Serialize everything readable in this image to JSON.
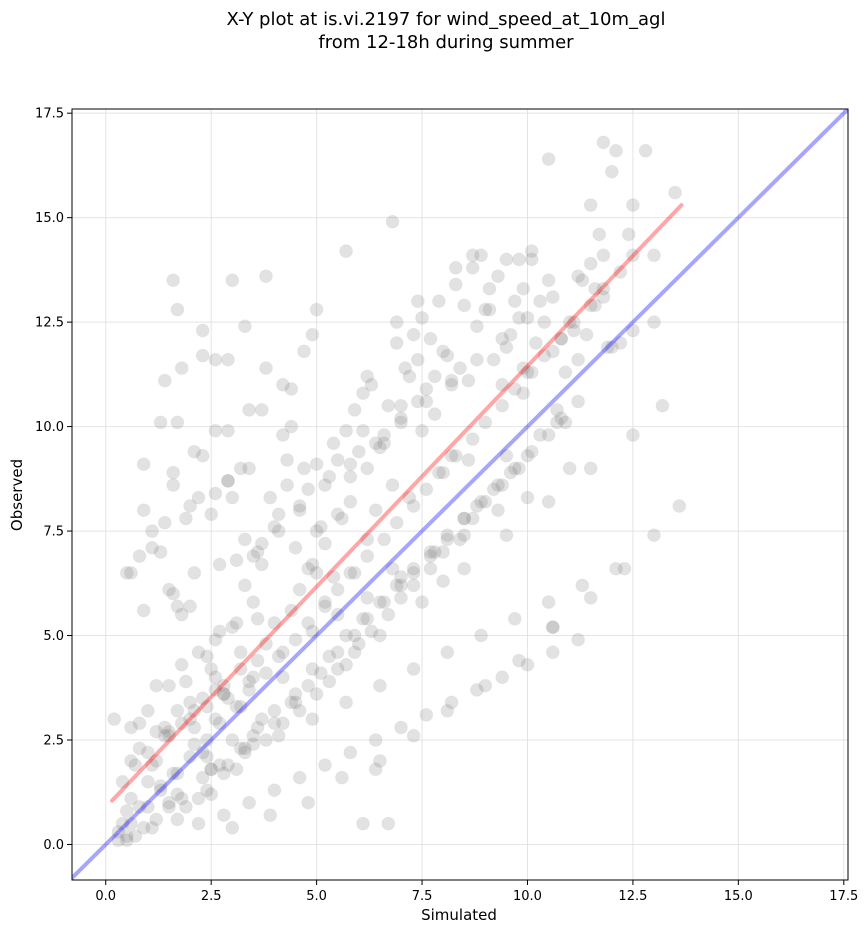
{
  "chart_data": {
    "type": "scatter",
    "title_lines": [
      "X-Y plot at is.vi.2197 for wind_speed_at_10m_agl",
      "from 12-18h during summer"
    ],
    "xlabel": "Simulated",
    "ylabel": "Observed",
    "xlim": [
      -0.8,
      17.6
    ],
    "ylim": [
      -0.85,
      17.6
    ],
    "xticks": [
      0.0,
      2.5,
      5.0,
      7.5,
      10.0,
      12.5,
      15.0,
      17.5
    ],
    "yticks": [
      0.0,
      2.5,
      5.0,
      7.5,
      10.0,
      12.5,
      15.0,
      17.5
    ],
    "xtick_labels": [
      "0.0",
      "2.5",
      "5.0",
      "7.5",
      "10.0",
      "12.5",
      "15.0",
      "17.5"
    ],
    "ytick_labels": [
      "0.0",
      "2.5",
      "5.0",
      "7.5",
      "10.0",
      "12.5",
      "15.0",
      "17.5"
    ],
    "grid": true,
    "point_color": "#7a7a7a",
    "reference_lines": [
      {
        "kind": "identity",
        "color": "#0000ff",
        "x": [
          -0.8,
          17.6
        ],
        "y": [
          -0.8,
          17.6
        ]
      },
      {
        "kind": "fit",
        "color": "#ff0000",
        "x": [
          0.15,
          13.65
        ],
        "y": [
          1.05,
          15.3
        ]
      }
    ],
    "series": [
      {
        "x": [
          1.7,
          0.5,
          1.0,
          2.1,
          1.6,
          0.4,
          1.1,
          1.8,
          2.4,
          0.8,
          1.3,
          2.0,
          1.5,
          0.6,
          2.6,
          3.0,
          1.9,
          2.3,
          2.8,
          1.2,
          3.2,
          2.5,
          0.3,
          1.4,
          2.2,
          3.4,
          2.7,
          1.0,
          3.6,
          2.0,
          3.8,
          4.0,
          2.9,
          3.3,
          4.2,
          1.6,
          3.1,
          4.4,
          2.4,
          3.7,
          4.6,
          3.0,
          4.8,
          2.6,
          5.0,
          3.5,
          4.1,
          5.2,
          3.9,
          4.5,
          5.4,
          4.3,
          2.1,
          5.6,
          4.7,
          3.2,
          5.8,
          4.9,
          6.0,
          5.1,
          3.6,
          5.3,
          6.2,
          4.4,
          5.5,
          6.4,
          5.7,
          4.8,
          6.6,
          5.9,
          6.8,
          6.1,
          5.0,
          7.0,
          6.3,
          5.4,
          7.2,
          6.5,
          7.4,
          6.7,
          5.8,
          7.6,
          6.9,
          7.8,
          7.1,
          6.2,
          8.0,
          7.3,
          8.2,
          7.5,
          6.6,
          8.4,
          7.7,
          8.6,
          7.9,
          7.0,
          8.8,
          8.1,
          9.0,
          8.3,
          7.4,
          9.2,
          8.5,
          9.4,
          8.7,
          9.6,
          8.9,
          7.8,
          9.8,
          9.1,
          10.0,
          9.3,
          10.2,
          9.5,
          8.2,
          10.4,
          9.7,
          10.6,
          9.9,
          10.8,
          10.1,
          11.0,
          10.3,
          11.2,
          10.5,
          11.4,
          10.7,
          11.6,
          10.9,
          11.8,
          11.1,
          12.0,
          11.3,
          12.2,
          11.5,
          12.5,
          11.7,
          12.8,
          13.0,
          13.5,
          0.7,
          1.2,
          1.9,
          2.4,
          0.9,
          1.5,
          2.2,
          2.8,
          3.1,
          1.7,
          0.5,
          2.5,
          3.3,
          1.1,
          3.8,
          2.9,
          4.2,
          1.8,
          3.5,
          4.6,
          2.3,
          4.0,
          5.0,
          2.7,
          4.4,
          5.3,
          3.2,
          4.8,
          5.7,
          3.6,
          5.1,
          6.0,
          4.0,
          5.5,
          6.3,
          4.5,
          5.9,
          6.7,
          4.9,
          6.2,
          7.0,
          5.3,
          6.6,
          7.3,
          5.7,
          7.0,
          7.7,
          6.1,
          7.3,
          8.0,
          6.5,
          7.7,
          8.4,
          6.9,
          8.1,
          8.7,
          7.3,
          8.5,
          9.0,
          7.7,
          8.8,
          9.4,
          8.1,
          9.2,
          9.8,
          8.5,
          9.6,
          10.1,
          8.9,
          10.0,
          10.5,
          9.3,
          10.3,
          10.8,
          9.7,
          10.7,
          11.2,
          1.6,
          2.3,
          3.0,
          3.3,
          1.8,
          0.9,
          2.9,
          2.1,
          3.2,
          3.8,
          1.7,
          2.3,
          3.4,
          4.4,
          2.9,
          3.7,
          4.2,
          4.7,
          5.0,
          4.9,
          5.7,
          2.6,
          3.8,
          1.3,
          6.2,
          6.8,
          0.9,
          1.1,
          8.7,
          10.1,
          0.6,
          1.4,
          2.0,
          2.5,
          0.8,
          1.1,
          1.6,
          2.2,
          2.9,
          0.5,
          1.3,
          1.9,
          2.6,
          3.4,
          0.9,
          1.5,
          2.1,
          2.7,
          3.3,
          4.1,
          4.6,
          3.6,
          1.2,
          1.8,
          2.4,
          0.6,
          1.2,
          1.7,
          2.3,
          2.8,
          0.4,
          0.7,
          1.0,
          1.5,
          2.0,
          2.6,
          3.2,
          0.8,
          1.4,
          2.1,
          2.8,
          3.5,
          4.2,
          4.9,
          5.5,
          6.2,
          7.0,
          7.8,
          8.5,
          9.3,
          10.0,
          3.0,
          3.9,
          4.8,
          5.6,
          6.5,
          7.3,
          8.1,
          9.0,
          9.8,
          10.6,
          11.5,
          12.3,
          13.0,
          13.6,
          2.5,
          3.3,
          4.1,
          4.9,
          5.7,
          6.5,
          7.3,
          8.1,
          8.9,
          9.7,
          10.5,
          11.3,
          12.1,
          0.3,
          0.6,
          1.0,
          1.3,
          1.7,
          2.0,
          2.4,
          2.7,
          3.1,
          3.4,
          3.8,
          4.1,
          4.5,
          4.8,
          5.2,
          5.5,
          5.9,
          6.2,
          6.6,
          6.9,
          7.3,
          7.6,
          8.0,
          8.3,
          8.7,
          9.0,
          9.4,
          9.7,
          10.1,
          10.4,
          10.8,
          11.1,
          11.5,
          11.8,
          12.2,
          12.5,
          4.0,
          4.6,
          5.2,
          5.8,
          6.4,
          7.0,
          7.6,
          8.2,
          8.8,
          9.4,
          10.0,
          10.6,
          11.2,
          11.8,
          12.4,
          2.2,
          2.8,
          3.4,
          4.0,
          4.6,
          5.2,
          5.8,
          6.4,
          7.0,
          7.6,
          8.2,
          8.8,
          9.4,
          10.0,
          10.6,
          11.2,
          1.5,
          3.5,
          5.5,
          7.5,
          9.5,
          11.5,
          0.5,
          1.5,
          2.5,
          3.5,
          4.5,
          5.5,
          6.5,
          7.5,
          8.5,
          9.5,
          10.5,
          11.5,
          12.5,
          13.2,
          11.8,
          12.1,
          12.0,
          11.6,
          10.5,
          9.8,
          13.0,
          12.5,
          9.9,
          11.9,
          8.6,
          7.9,
          7.2,
          6.8,
          5.9,
          10.6,
          11.0,
          9.5,
          8.0,
          10.9,
          0.2,
          1.8,
          3.7,
          5.0,
          6.1,
          6.9,
          7.4,
          8.3,
          9.1,
          9.9,
          1.7,
          2.9,
          4.2,
          4.3,
          5.2,
          5.8,
          3.0,
          2.6,
          2.3,
          1.4,
          1.7,
          1.6,
          3.1,
          2.6,
          3.7,
          6.4,
          6.1,
          6.7,
          0.8,
          0.6
        ],
        "y": [
          1.2,
          0.8,
          1.5,
          2.4,
          1.7,
          0.5,
          1.9,
          2.9,
          2.1,
          0.9,
          1.4,
          3.4,
          2.7,
          1.1,
          3.0,
          2.5,
          3.9,
          2.2,
          3.6,
          2.0,
          3.3,
          4.2,
          0.3,
          2.6,
          4.6,
          3.9,
          5.1,
          3.2,
          4.4,
          5.7,
          4.8,
          5.3,
          3.5,
          6.2,
          4.0,
          6.0,
          6.8,
          5.6,
          3.3,
          7.2,
          6.1,
          5.2,
          6.6,
          4.9,
          7.5,
          6.9,
          7.9,
          5.8,
          8.3,
          7.1,
          6.4,
          8.6,
          2.8,
          7.8,
          9.0,
          4.6,
          8.2,
          6.7,
          9.4,
          7.6,
          5.4,
          8.8,
          7.3,
          10.0,
          9.2,
          8.0,
          9.9,
          8.5,
          9.6,
          10.4,
          8.6,
          10.8,
          9.1,
          10.2,
          11.0,
          9.6,
          11.2,
          9.5,
          11.6,
          10.5,
          8.8,
          10.9,
          12.0,
          10.3,
          11.4,
          9.0,
          11.8,
          12.2,
          11.0,
          12.6,
          9.8,
          11.4,
          12.1,
          11.1,
          13.0,
          10.5,
          12.4,
          11.7,
          12.8,
          13.4,
          10.6,
          11.6,
          12.9,
          11.0,
          13.8,
          12.2,
          14.1,
          11.2,
          12.6,
          13.3,
          11.3,
          13.6,
          12.0,
          14.0,
          9.3,
          12.5,
          13.0,
          11.8,
          13.3,
          12.1,
          14.2,
          12.5,
          13.0,
          11.6,
          13.5,
          12.2,
          10.4,
          12.9,
          11.3,
          13.1,
          12.3,
          11.9,
          13.5,
          12.0,
          15.3,
          12.3,
          14.6,
          16.6,
          12.5,
          15.6,
          0.2,
          0.6,
          0.9,
          1.3,
          0.4,
          0.9,
          1.1,
          1.7,
          1.8,
          0.6,
          0.1,
          1.2,
          2.3,
          0.4,
          2.5,
          1.9,
          2.9,
          1.1,
          2.4,
          3.2,
          1.6,
          2.9,
          3.6,
          1.9,
          3.4,
          3.9,
          2.3,
          3.8,
          4.3,
          2.8,
          4.1,
          4.8,
          3.2,
          4.6,
          5.1,
          3.6,
          5.0,
          5.5,
          4.2,
          5.4,
          5.9,
          4.5,
          5.8,
          6.2,
          5.0,
          6.2,
          6.6,
          5.4,
          6.5,
          7.0,
          5.8,
          6.9,
          7.3,
          6.2,
          7.3,
          7.8,
          6.6,
          7.8,
          8.2,
          7.0,
          8.1,
          8.6,
          7.4,
          8.5,
          9.0,
          7.8,
          8.9,
          9.4,
          8.2,
          9.3,
          9.8,
          8.6,
          9.8,
          10.2,
          9.0,
          10.1,
          10.6,
          13.5,
          12.3,
          13.5,
          12.4,
          11.4,
          9.1,
          9.9,
          9.4,
          9.0,
          11.4,
          10.1,
          9.3,
          10.4,
          10.9,
          8.7,
          10.4,
          11.0,
          11.8,
          12.8,
          12.2,
          14.2,
          11.6,
          13.6,
          10.1,
          11.2,
          14.9,
          8.0,
          7.1,
          14.1,
          14.0,
          6.5,
          7.7,
          8.1,
          7.9,
          6.9,
          7.5,
          8.9,
          8.3,
          8.7,
          6.5,
          7.0,
          7.8,
          8.4,
          9.0,
          5.6,
          6.1,
          6.5,
          6.7,
          7.3,
          7.5,
          8.0,
          7.0,
          3.8,
          4.3,
          4.5,
          2.0,
          2.7,
          3.2,
          3.5,
          3.8,
          1.5,
          1.9,
          2.2,
          2.6,
          3.0,
          3.7,
          4.2,
          2.3,
          2.8,
          3.2,
          3.6,
          4.0,
          4.6,
          5.1,
          5.5,
          5.9,
          6.4,
          7.0,
          7.4,
          8.0,
          8.3,
          0.4,
          0.7,
          1.0,
          1.6,
          2.0,
          2.6,
          3.2,
          3.8,
          4.4,
          5.2,
          5.9,
          6.6,
          7.4,
          8.1,
          1.8,
          2.2,
          2.6,
          3.0,
          3.4,
          3.8,
          4.2,
          4.6,
          5.0,
          5.4,
          5.8,
          6.2,
          6.6,
          0.1,
          0.5,
          0.9,
          1.3,
          1.7,
          2.1,
          2.5,
          2.9,
          3.3,
          3.7,
          4.1,
          4.5,
          4.9,
          5.3,
          5.7,
          6.1,
          6.5,
          6.9,
          7.3,
          7.7,
          8.1,
          8.5,
          8.9,
          9.3,
          9.7,
          10.1,
          10.5,
          10.9,
          11.3,
          11.7,
          12.1,
          12.5,
          12.9,
          13.3,
          13.7,
          14.1,
          7.6,
          8.1,
          8.6,
          9.1,
          9.6,
          10.1,
          10.6,
          11.1,
          11.6,
          12.1,
          12.6,
          13.1,
          13.6,
          14.1,
          14.6,
          0.5,
          0.7,
          1.0,
          1.3,
          1.6,
          1.9,
          2.2,
          2.5,
          2.8,
          3.1,
          3.4,
          3.7,
          4.0,
          4.3,
          4.6,
          4.9,
          3.8,
          5.8,
          7.9,
          9.9,
          11.9,
          13.9,
          0.2,
          1.0,
          1.8,
          2.6,
          3.4,
          4.2,
          5.0,
          5.8,
          6.6,
          7.4,
          8.2,
          9.0,
          9.8,
          10.5,
          16.8,
          16.6,
          16.1,
          13.3,
          16.4,
          14.0,
          14.1,
          15.3,
          10.8,
          11.9,
          9.2,
          8.9,
          8.3,
          6.6,
          4.6,
          5.2,
          9.0,
          9.3,
          6.3,
          10.1,
          3.0,
          5.5,
          6.7,
          6.5,
          9.9,
          12.5,
          13.0,
          13.8,
          12.8,
          11.4,
          12.8,
          11.6,
          9.8,
          9.2,
          7.2,
          6.5,
          8.3,
          9.9,
          11.7,
          11.1,
          5.7,
          8.6,
          5.3,
          4.0,
          3.0,
          1.8,
          0.5,
          0.5,
          2.9,
          2.8
        ]
      }
    ]
  }
}
